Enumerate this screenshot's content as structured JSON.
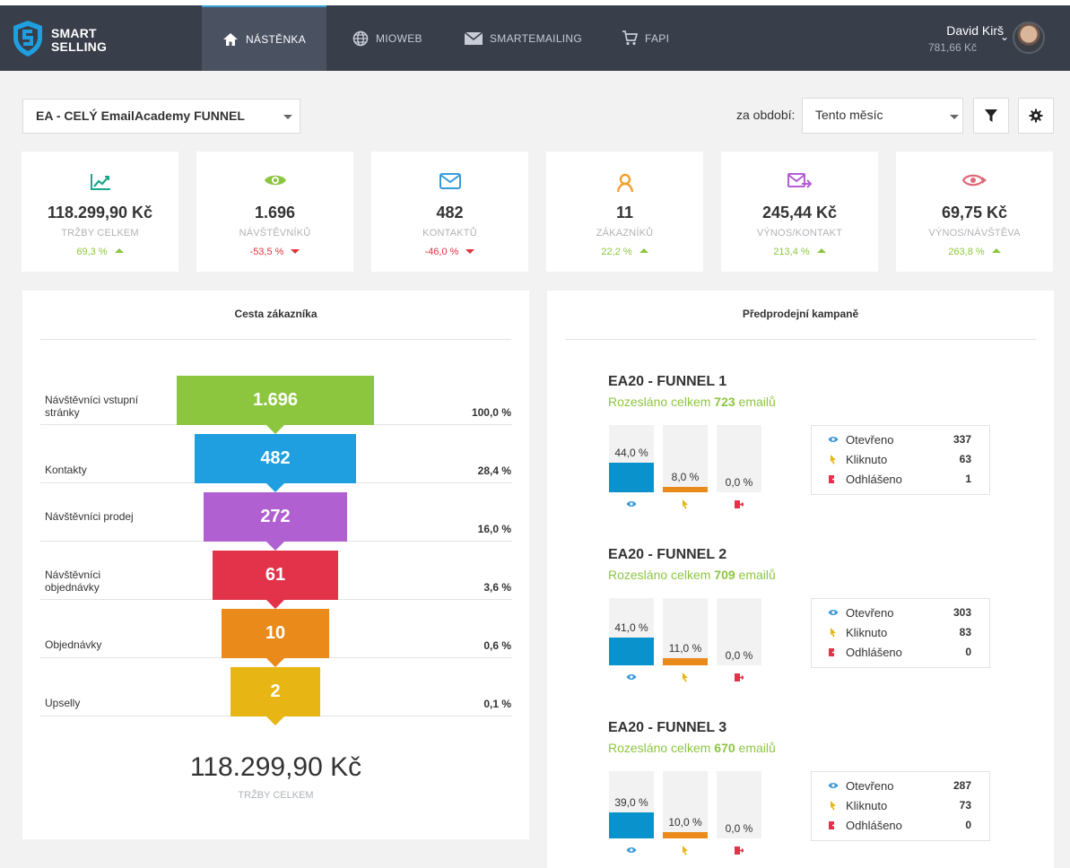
{
  "brand": {
    "line1": "SMART",
    "line2": "SELLING"
  },
  "nav": [
    {
      "label": "NÁSTĚNKA",
      "icon": "home-icon",
      "active": true
    },
    {
      "label": "MIOWEB",
      "icon": "globe-icon",
      "active": false
    },
    {
      "label": "SMARTEMAILING",
      "icon": "envelope-icon",
      "active": false
    },
    {
      "label": "FAPI",
      "icon": "cart-icon",
      "active": false
    }
  ],
  "user": {
    "name": "David Kirš",
    "balance": "781,66 Kč"
  },
  "filters": {
    "funnel": "EA - CELÝ EmailAcademy FUNNEL",
    "period_label": "za období:",
    "period": "Tento měsíc"
  },
  "stats": [
    {
      "value": "118.299,90 Kč",
      "label": "TRŽBY CELKEM",
      "change": "69,3 %",
      "trend": "up",
      "icon": "chart-icon",
      "color": "#1aa68c"
    },
    {
      "value": "1.696",
      "label": "NÁVŠTĚVNÍKŮ",
      "change": "-53,5 %",
      "trend": "down",
      "icon": "eye-icon",
      "color": "#8cc63f"
    },
    {
      "value": "482",
      "label": "KONTAKTŮ",
      "change": "-46,0 %",
      "trend": "down",
      "icon": "envelope-icon",
      "color": "#3a9ad9"
    },
    {
      "value": "11",
      "label": "ZÁKAZNÍKŮ",
      "change": "22,2 %",
      "trend": "up",
      "icon": "user-icon",
      "color": "#f0a030"
    },
    {
      "value": "245,44 Kč",
      "label": "VÝNOS/KONTAKT",
      "change": "213,4 %",
      "trend": "up",
      "icon": "mail-send-icon",
      "color": "#b45ed4"
    },
    {
      "value": "69,75 Kč",
      "label": "VÝNOS/NÁVŠTĚVA",
      "change": "263,8 %",
      "trend": "up",
      "icon": "eye-tag-icon",
      "color": "#e0687a"
    }
  ],
  "funnel": {
    "title": "Cesta zákazníka",
    "rows": [
      {
        "label": "Návštěvníci vstupní stránky",
        "value": "1.696",
        "pct": "100,0 %",
        "color": "#8cc63f"
      },
      {
        "label": "Kontakty",
        "value": "482",
        "pct": "28,4 %",
        "color": "#1f9fe0"
      },
      {
        "label": "Návštěvníci prodej",
        "value": "272",
        "pct": "16,0 %",
        "color": "#b060d0"
      },
      {
        "label": "Návštěvníci objednávky",
        "value": "61",
        "pct": "3,6 %",
        "color": "#e2334a"
      },
      {
        "label": "Objednávky",
        "value": "10",
        "pct": "0,6 %",
        "color": "#e98a1a"
      },
      {
        "label": "Upselly",
        "value": "2",
        "pct": "0,1 %",
        "color": "#e8b614"
      }
    ],
    "total": "118.299,90 Kč",
    "total_label": "TRŽBY CELKEM"
  },
  "campaigns": {
    "title": "Předprodejní kampaně",
    "sent_prefix": "Rozesláno celkem",
    "sent_suffix": "emailů",
    "legend_labels": {
      "opened": "Otevřeno",
      "clicked": "Kliknuto",
      "unsub": "Odhlášeno"
    },
    "items": [
      {
        "name": "EA20 - FUNNEL 1",
        "sent": "723",
        "opened_pct": "44,0 %",
        "clicked_pct": "8,0 %",
        "unsub_pct": "0,0 %",
        "opened_frac": 0.44,
        "clicked_frac": 0.08,
        "unsub_frac": 0.0,
        "opened": "337",
        "clicked": "63",
        "unsub": "1"
      },
      {
        "name": "EA20 - FUNNEL 2",
        "sent": "709",
        "opened_pct": "41,0 %",
        "clicked_pct": "11,0 %",
        "unsub_pct": "0,0 %",
        "opened_frac": 0.41,
        "clicked_frac": 0.11,
        "unsub_frac": 0.0,
        "opened": "303",
        "clicked": "83",
        "unsub": "0"
      },
      {
        "name": "EA20 - FUNNEL 3",
        "sent": "670",
        "opened_pct": "39,0 %",
        "clicked_pct": "10,0 %",
        "unsub_pct": "0,0 %",
        "opened_frac": 0.39,
        "clicked_frac": 0.1,
        "unsub_frac": 0.0,
        "opened": "287",
        "clicked": "73",
        "unsub": "0"
      }
    ]
  }
}
